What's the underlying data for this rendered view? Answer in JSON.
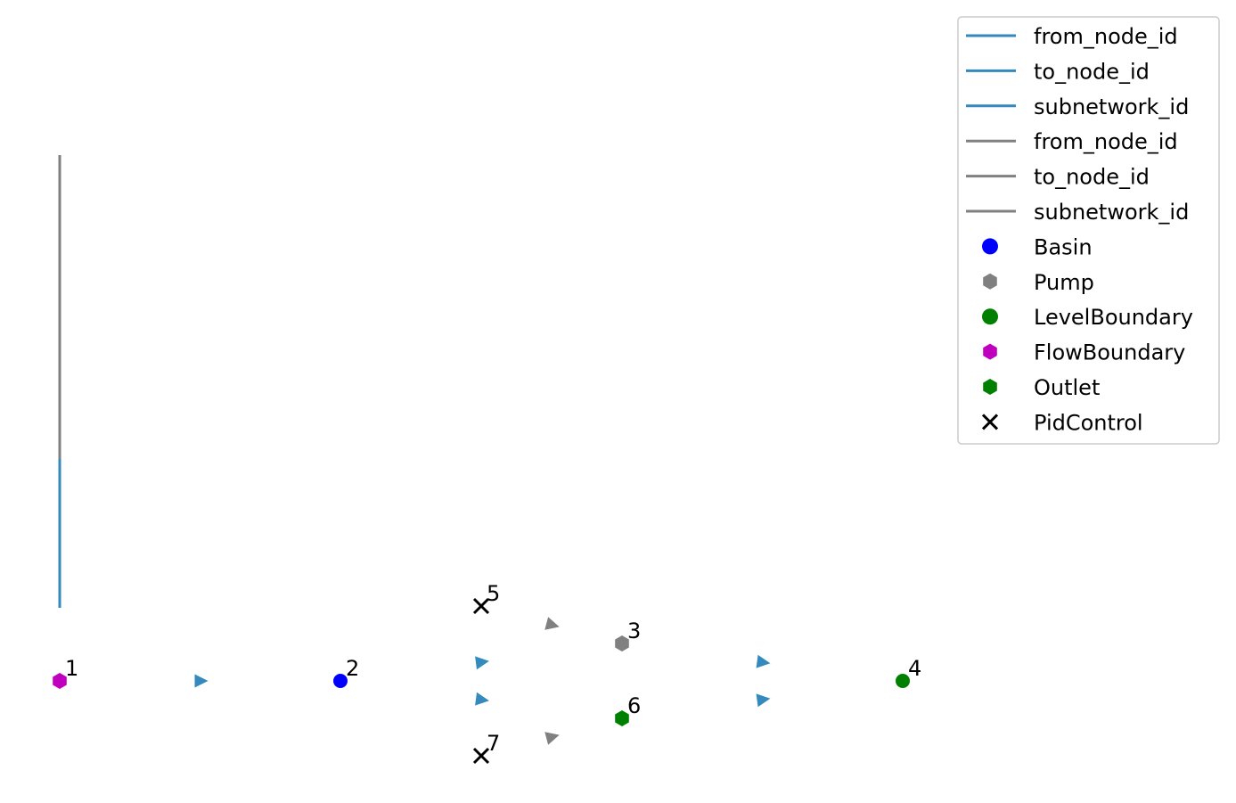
{
  "colors": {
    "flow_edge": "#348ABD",
    "control_edge": "#808080",
    "basin": "#0000FF",
    "pump": "#808080",
    "level_boundary": "#008000",
    "flow_boundary": "#BF00BF",
    "outlet": "#008000",
    "pid_control": "#000000"
  },
  "nodes": [
    {
      "id": "1",
      "type": "FlowBoundary"
    },
    {
      "id": "2",
      "type": "Basin"
    },
    {
      "id": "3",
      "type": "Pump"
    },
    {
      "id": "4",
      "type": "LevelBoundary"
    },
    {
      "id": "5",
      "type": "PidControl"
    },
    {
      "id": "6",
      "type": "Outlet"
    },
    {
      "id": "7",
      "type": "PidControl"
    }
  ],
  "edges": [
    {
      "from": "1",
      "to": "2",
      "kind": "flow"
    },
    {
      "from": "2",
      "to": "3",
      "kind": "flow"
    },
    {
      "from": "3",
      "to": "4",
      "kind": "flow"
    },
    {
      "from": "2",
      "to": "6",
      "kind": "flow"
    },
    {
      "from": "6",
      "to": "4",
      "kind": "flow"
    },
    {
      "from": "5",
      "to": "3",
      "kind": "control"
    },
    {
      "from": "7",
      "to": "6",
      "kind": "control"
    }
  ],
  "legend": {
    "items": [
      {
        "label": "from_node_id",
        "kind": "line",
        "color": "#348ABD"
      },
      {
        "label": "to_node_id",
        "kind": "line",
        "color": "#348ABD"
      },
      {
        "label": "subnetwork_id",
        "kind": "line",
        "color": "#348ABD"
      },
      {
        "label": "from_node_id",
        "kind": "line",
        "color": "#808080"
      },
      {
        "label": "to_node_id",
        "kind": "line",
        "color": "#808080"
      },
      {
        "label": "subnetwork_id",
        "kind": "line",
        "color": "#808080"
      },
      {
        "label": "Basin",
        "kind": "circle",
        "color": "#0000FF"
      },
      {
        "label": "Pump",
        "kind": "hexagon",
        "color": "#808080"
      },
      {
        "label": "LevelBoundary",
        "kind": "circle",
        "color": "#008000"
      },
      {
        "label": "FlowBoundary",
        "kind": "hexagon",
        "color": "#BF00BF"
      },
      {
        "label": "Outlet",
        "kind": "hexagon",
        "color": "#008000"
      },
      {
        "label": "PidControl",
        "kind": "x",
        "color": "#000000"
      }
    ]
  }
}
